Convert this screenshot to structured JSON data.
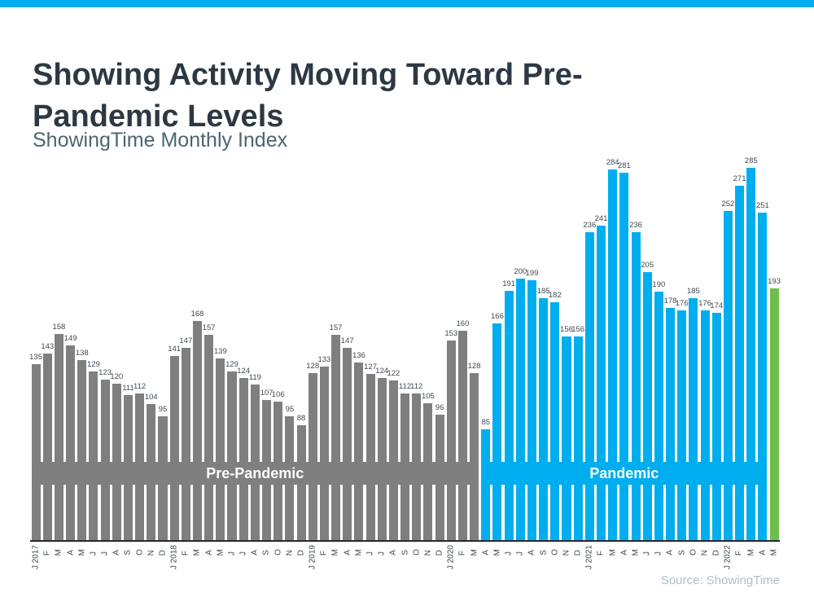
{
  "accent_color": "#00aeef",
  "chart_data": {
    "type": "bar",
    "title": "Showing Activity Moving Toward Pre-Pandemic Levels",
    "subtitle": "ShowingTime Monthly Index",
    "source": "Source: ShowingTime",
    "ylim": [
      0,
      285
    ],
    "grid": false,
    "x": [
      "J 2017",
      "F",
      "M",
      "A",
      "M",
      "J",
      "J",
      "A",
      "S",
      "O",
      "N",
      "D",
      "J 2018",
      "F",
      "M",
      "A",
      "M",
      "J",
      "J",
      "A",
      "S",
      "O",
      "N",
      "D",
      "J 2019",
      "F",
      "M",
      "A",
      "M",
      "J",
      "J",
      "A",
      "S",
      "O",
      "N",
      "D",
      "J 2020",
      "F",
      "M",
      "A",
      "M",
      "J",
      "J",
      "A",
      "S",
      "O",
      "N",
      "D",
      "J 2021",
      "F",
      "M",
      "A",
      "M",
      "J",
      "J",
      "A",
      "S",
      "O",
      "N",
      "D",
      "J 2022",
      "F",
      "M",
      "A",
      "M"
    ],
    "values": [
      135,
      143,
      158,
      149,
      138,
      129,
      123,
      120,
      111,
      112,
      104,
      95,
      141,
      147,
      168,
      157,
      139,
      129,
      124,
      119,
      107,
      106,
      95,
      88,
      128,
      133,
      157,
      147,
      136,
      127,
      124,
      122,
      112,
      112,
      105,
      96,
      153,
      160,
      128,
      85,
      166,
      191,
      200,
      199,
      185,
      182,
      156,
      156,
      236,
      241,
      284,
      281,
      236,
      205,
      190,
      178,
      176,
      185,
      176,
      174,
      252,
      271,
      285,
      251,
      193
    ],
    "segments": [
      {
        "label": "Pre-Pandemic",
        "start_index": 0,
        "end_index": 38,
        "color": "#7f7f7f"
      },
      {
        "label": "Pandemic",
        "start_index": 39,
        "end_index": 63,
        "color": "#00aeef"
      },
      {
        "label": "",
        "start_index": 64,
        "end_index": 64,
        "color": "#6dbe4b"
      }
    ]
  }
}
